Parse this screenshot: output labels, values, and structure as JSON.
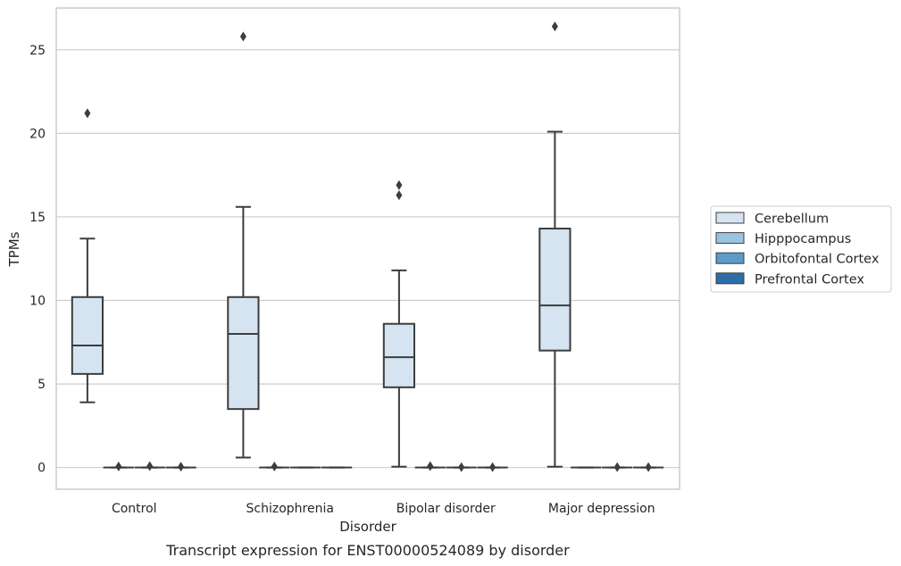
{
  "chart_data": {
    "type": "box",
    "title": "",
    "caption": "Transcript expression for ENST00000524089 by disorder",
    "xlabel": "Disorder",
    "ylabel": "TPMs",
    "ylim": [
      -1.3,
      27.5
    ],
    "yticks": [
      0,
      5,
      10,
      15,
      20,
      25
    ],
    "grid": "horizontal",
    "legend_position": "right",
    "categories": [
      "Control",
      "Schizophrenia",
      "Bipolar disorder",
      "Major depression"
    ],
    "series": [
      {
        "name": "Cerebellum",
        "color": "#d6e4f2",
        "boxes": [
          {
            "whislo": 3.9,
            "q1": 5.6,
            "med": 7.3,
            "q3": 10.2,
            "whishi": 13.7,
            "fliers": [
              21.2
            ]
          },
          {
            "whislo": 0.6,
            "q1": 3.5,
            "med": 8.0,
            "q3": 10.2,
            "whishi": 15.6,
            "fliers": [
              25.8
            ]
          },
          {
            "whislo": 0.05,
            "q1": 4.8,
            "med": 6.6,
            "q3": 8.6,
            "whishi": 11.8,
            "fliers": [
              16.3,
              16.9
            ]
          },
          {
            "whislo": 0.05,
            "q1": 7.0,
            "med": 9.7,
            "q3": 14.3,
            "whishi": 20.1,
            "fliers": [
              26.4
            ]
          }
        ]
      },
      {
        "name": "Hipppocampus",
        "color": "#9ac3e0",
        "boxes": [
          {
            "whislo": 0.0,
            "q1": 0.0,
            "med": 0.0,
            "q3": 0.0,
            "whishi": 0.0,
            "fliers": [
              0.06
            ]
          },
          {
            "whislo": 0.0,
            "q1": 0.0,
            "med": 0.0,
            "q3": 0.0,
            "whishi": 0.0,
            "fliers": [
              0.06
            ]
          },
          {
            "whislo": 0.0,
            "q1": 0.0,
            "med": 0.0,
            "q3": 0.0,
            "whishi": 0.0,
            "fliers": [
              0.08
            ]
          },
          {
            "whislo": 0.0,
            "q1": 0.0,
            "med": 0.0,
            "q3": 0.0,
            "whishi": 0.0,
            "fliers": []
          }
        ]
      },
      {
        "name": "Orbitofontal Cortex",
        "color": "#5b9bc9",
        "boxes": [
          {
            "whislo": 0.0,
            "q1": 0.0,
            "med": 0.0,
            "q3": 0.0,
            "whishi": 0.0,
            "fliers": [
              0.08
            ]
          },
          {
            "whislo": 0.0,
            "q1": 0.0,
            "med": 0.0,
            "q3": 0.0,
            "whishi": 0.0,
            "fliers": []
          },
          {
            "whislo": 0.0,
            "q1": 0.0,
            "med": 0.0,
            "q3": 0.0,
            "whishi": 0.0,
            "fliers": [
              0.02
            ]
          },
          {
            "whislo": 0.0,
            "q1": 0.0,
            "med": 0.0,
            "q3": 0.0,
            "whishi": 0.0,
            "fliers": [
              0.02
            ]
          }
        ]
      },
      {
        "name": "Prefrontal Cortex",
        "color": "#2d6ea9",
        "boxes": [
          {
            "whislo": 0.0,
            "q1": 0.0,
            "med": 0.0,
            "q3": 0.0,
            "whishi": 0.0,
            "fliers": [
              0.05
            ]
          },
          {
            "whislo": 0.0,
            "q1": 0.0,
            "med": 0.0,
            "q3": 0.0,
            "whishi": 0.0,
            "fliers": []
          },
          {
            "whislo": 0.0,
            "q1": 0.0,
            "med": 0.0,
            "q3": 0.0,
            "whishi": 0.0,
            "fliers": [
              0.02
            ]
          },
          {
            "whislo": 0.0,
            "q1": 0.0,
            "med": 0.0,
            "q3": 0.0,
            "whishi": 0.0,
            "fliers": [
              0.02
            ]
          }
        ]
      }
    ]
  }
}
